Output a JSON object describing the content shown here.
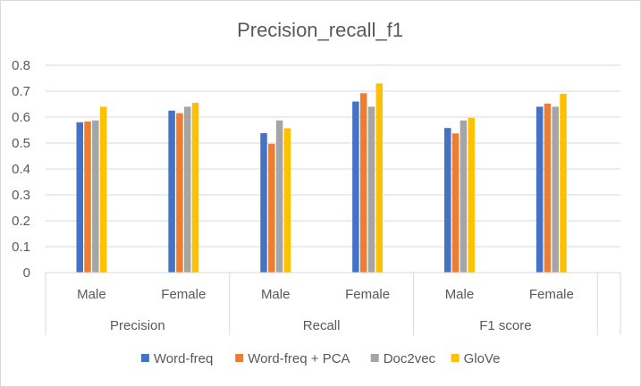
{
  "chart_data": {
    "type": "bar",
    "title": "Precision_recall_f1",
    "groups": [
      {
        "label": "Precision",
        "categories": [
          "Male",
          "Female"
        ]
      },
      {
        "label": "Recall",
        "categories": [
          "Male",
          "Female"
        ]
      },
      {
        "label": "F1 score",
        "categories": [
          "Male",
          "Female"
        ]
      }
    ],
    "categories": [
      "Male",
      "Female",
      "Male",
      "Female",
      "Male",
      "Female"
    ],
    "series": [
      {
        "name": "Word-freq",
        "color": "#4472C4",
        "values": [
          0.58,
          0.625,
          0.538,
          0.66,
          0.558,
          0.64
        ]
      },
      {
        "name": "Word-freq + PCA",
        "color": "#ED7D31",
        "values": [
          0.583,
          0.615,
          0.497,
          0.692,
          0.537,
          0.652
        ]
      },
      {
        "name": "Doc2vec",
        "color": "#A5A5A5",
        "values": [
          0.587,
          0.64,
          0.587,
          0.64,
          0.587,
          0.64
        ]
      },
      {
        "name": "GloVe",
        "color": "#FFC000",
        "values": [
          0.64,
          0.655,
          0.557,
          0.73,
          0.597,
          0.69
        ]
      }
    ],
    "yticks": [
      "0",
      "0.1",
      "0.2",
      "0.3",
      "0.4",
      "0.5",
      "0.6",
      "0.7",
      "0.8"
    ],
    "ylim": [
      0,
      0.8
    ],
    "grid": true,
    "legend_position": "bottom"
  }
}
